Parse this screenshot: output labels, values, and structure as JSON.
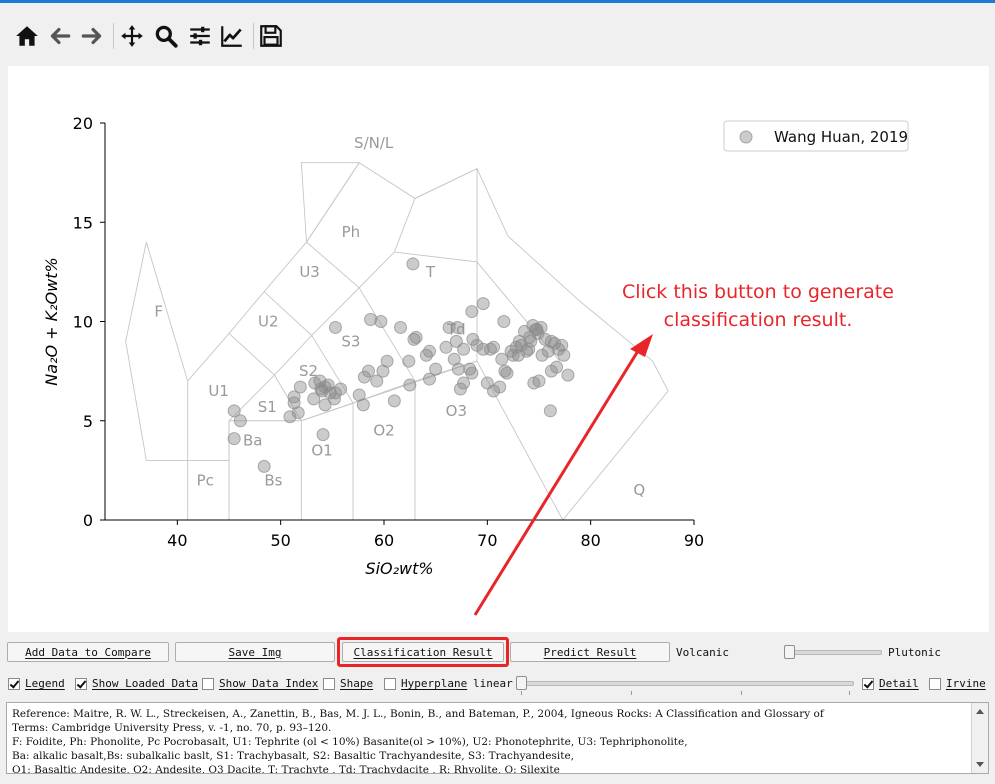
{
  "toolbar": {
    "icons": [
      "home-icon",
      "back-arrow-icon",
      "forward-arrow-icon",
      "pan-move-icon",
      "zoom-magnifier-icon",
      "configure-subplots-icon",
      "edit-axis-curve-icon",
      "save-floppy-icon"
    ]
  },
  "chart_data": {
    "type": "scatter",
    "xlabel": "SiO₂wt%",
    "ylabel": "Na₂O + K₂Owt%",
    "xlim": [
      33,
      90
    ],
    "ylim": [
      0,
      20
    ],
    "xticks": [
      "40",
      "50",
      "60",
      "70",
      "80",
      "90"
    ],
    "yticks": [
      "0",
      "5",
      "10",
      "15",
      "20"
    ],
    "grid": false,
    "legend_position": "top-right",
    "series": [
      {
        "name": "Wang Huan, 2019",
        "color": "#8c8c8c",
        "points": [
          [
            45.5,
            5.5
          ],
          [
            46.1,
            5.0
          ],
          [
            45.5,
            4.1
          ],
          [
            48.4,
            2.7
          ],
          [
            50.9,
            5.2
          ],
          [
            51.3,
            5.9
          ],
          [
            51.3,
            6.2
          ],
          [
            51.9,
            6.7
          ],
          [
            51.7,
            5.4
          ],
          [
            53.2,
            6.1
          ],
          [
            53.3,
            6.9
          ],
          [
            53.8,
            7.0
          ],
          [
            53.9,
            6.6
          ],
          [
            54.0,
            6.5
          ],
          [
            54.3,
            6.7
          ],
          [
            54.6,
            6.8
          ],
          [
            54.8,
            6.4
          ],
          [
            55.3,
            6.4
          ],
          [
            55.8,
            6.6
          ],
          [
            54.3,
            5.8
          ],
          [
            55.2,
            6.1
          ],
          [
            54.1,
            4.3
          ],
          [
            55.3,
            9.7
          ],
          [
            57.6,
            6.3
          ],
          [
            58.0,
            5.8
          ],
          [
            58.1,
            7.2
          ],
          [
            58.5,
            7.5
          ],
          [
            59.3,
            7.0
          ],
          [
            59.9,
            7.5
          ],
          [
            60.3,
            8.0
          ],
          [
            61.0,
            6.0
          ],
          [
            58.7,
            10.1
          ],
          [
            59.7,
            10.0
          ],
          [
            61.6,
            9.7
          ],
          [
            62.4,
            8.0
          ],
          [
            62.5,
            6.8
          ],
          [
            62.9,
            9.1
          ],
          [
            63.1,
            9.2
          ],
          [
            64.1,
            8.3
          ],
          [
            64.4,
            8.5
          ],
          [
            64.4,
            7.1
          ],
          [
            65.0,
            7.6
          ],
          [
            62.8,
            12.9
          ],
          [
            66.0,
            8.7
          ],
          [
            66.3,
            9.7
          ],
          [
            66.8,
            8.1
          ],
          [
            67.0,
            9.0
          ],
          [
            67.1,
            9.7
          ],
          [
            67.2,
            7.6
          ],
          [
            67.4,
            6.6
          ],
          [
            67.7,
            6.9
          ],
          [
            67.7,
            8.6
          ],
          [
            68.3,
            7.6
          ],
          [
            68.5,
            10.5
          ],
          [
            68.5,
            7.4
          ],
          [
            68.6,
            9.1
          ],
          [
            69.0,
            8.8
          ],
          [
            69.6,
            10.9
          ],
          [
            69.6,
            8.6
          ],
          [
            70.0,
            6.9
          ],
          [
            70.3,
            8.6
          ],
          [
            70.6,
            8.7
          ],
          [
            70.6,
            6.5
          ],
          [
            71.2,
            6.7
          ],
          [
            71.4,
            8.1
          ],
          [
            71.7,
            7.5
          ],
          [
            71.6,
            10.0
          ],
          [
            71.9,
            7.4
          ],
          [
            72.3,
            8.5
          ],
          [
            72.5,
            8.3
          ],
          [
            72.8,
            8.7
          ],
          [
            73.1,
            9.0
          ],
          [
            73.3,
            8.8
          ],
          [
            73.6,
            9.5
          ],
          [
            73.8,
            8.5
          ],
          [
            74.0,
            8.6
          ],
          [
            74.1,
            9.2
          ],
          [
            74.4,
            9.8
          ],
          [
            74.5,
            6.9
          ],
          [
            74.7,
            9.6
          ],
          [
            74.9,
            9.4
          ],
          [
            75.0,
            7.0
          ],
          [
            75.2,
            9.7
          ],
          [
            75.3,
            8.3
          ],
          [
            75.6,
            9.1
          ],
          [
            75.9,
            8.5
          ],
          [
            76.1,
            5.5
          ],
          [
            76.2,
            9.0
          ],
          [
            76.2,
            7.5
          ],
          [
            76.5,
            8.9
          ],
          [
            76.7,
            7.7
          ],
          [
            76.9,
            8.6
          ],
          [
            77.2,
            8.8
          ],
          [
            77.4,
            8.3
          ],
          [
            77.8,
            7.3
          ],
          [
            74.8,
            9.6
          ],
          [
            74.2,
            9.0
          ],
          [
            73.0,
            8.3
          ]
        ]
      }
    ],
    "field_labels": [
      {
        "text": "S/N/L",
        "x": 59.0,
        "y": 19.0
      },
      {
        "text": "Ph",
        "x": 56.8,
        "y": 14.5
      },
      {
        "text": "T",
        "x": 64.5,
        "y": 12.5
      },
      {
        "text": "U3",
        "x": 52.8,
        "y": 12.5
      },
      {
        "text": "F",
        "x": 38.2,
        "y": 10.5
      },
      {
        "text": "U2",
        "x": 48.8,
        "y": 10.0
      },
      {
        "text": "S3",
        "x": 56.8,
        "y": 9.0
      },
      {
        "text": "Td",
        "x": 67.0,
        "y": 9.6
      },
      {
        "text": "S2",
        "x": 52.7,
        "y": 7.5
      },
      {
        "text": "U1",
        "x": 44.0,
        "y": 6.5
      },
      {
        "text": "S1",
        "x": 48.7,
        "y": 5.7
      },
      {
        "text": "O3",
        "x": 67.0,
        "y": 5.5
      },
      {
        "text": "O2",
        "x": 60.0,
        "y": 4.5
      },
      {
        "text": "Ba",
        "x": 47.3,
        "y": 4.0
      },
      {
        "text": "O1",
        "x": 54.0,
        "y": 3.5
      },
      {
        "text": "Pc",
        "x": 42.7,
        "y": 2.0
      },
      {
        "text": "Bs",
        "x": 49.3,
        "y": 2.0
      },
      {
        "text": "Q",
        "x": 84.7,
        "y": 1.5
      }
    ],
    "field_boundaries": [
      [
        [
          41,
          0
        ],
        [
          41,
          3
        ],
        [
          45,
          3
        ],
        [
          45,
          5
        ],
        [
          49.4,
          7.3
        ],
        [
          53,
          9.3
        ],
        [
          57.6,
          11.7
        ],
        [
          61,
          13.5
        ],
        [
          63,
          16.2
        ]
      ],
      [
        [
          41,
          3
        ],
        [
          41,
          7
        ],
        [
          45,
          9.4
        ],
        [
          48.4,
          11.5
        ],
        [
          52.5,
          14
        ],
        [
          57.6,
          18
        ],
        [
          63,
          16.2
        ],
        [
          69,
          17.7
        ],
        [
          69,
          13
        ],
        [
          77,
          8
        ]
      ],
      [
        [
          45,
          0
        ],
        [
          45,
          5
        ]
      ],
      [
        [
          52,
          0
        ],
        [
          52,
          5
        ],
        [
          57,
          5.9
        ],
        [
          63,
          7
        ],
        [
          69,
          8
        ],
        [
          77.3,
          0
        ]
      ],
      [
        [
          57,
          0
        ],
        [
          57,
          5.9
        ]
      ],
      [
        [
          63,
          0
        ],
        [
          63,
          7
        ]
      ],
      [
        [
          45,
          5
        ],
        [
          52,
          5
        ],
        [
          69,
          8
        ]
      ],
      [
        [
          52,
          5
        ],
        [
          49.4,
          7.3
        ],
        [
          45,
          9.4
        ]
      ],
      [
        [
          57,
          5.9
        ],
        [
          53,
          9.3
        ],
        [
          48.4,
          11.5
        ]
      ],
      [
        [
          63,
          7
        ],
        [
          57.6,
          11.7
        ],
        [
          52.5,
          14
        ]
      ],
      [
        [
          69,
          8
        ],
        [
          69,
          13
        ],
        [
          61,
          13.5
        ]
      ],
      [
        [
          57.6,
          18
        ],
        [
          52.5,
          14
        ]
      ],
      [
        [
          39.2,
          0
        ],
        [
          41,
          0
        ]
      ],
      [
        [
          41,
          7
        ],
        [
          37,
          14
        ],
        [
          35,
          9
        ],
        [
          37,
          3
        ],
        [
          41,
          3
        ]
      ],
      [
        [
          52.5,
          14
        ],
        [
          52,
          18
        ],
        [
          57.6,
          18
        ]
      ],
      [
        [
          77.3,
          0
        ],
        [
          87.5,
          6.5
        ],
        [
          86,
          8
        ],
        [
          79,
          11
        ],
        [
          72,
          14.3
        ],
        [
          69,
          17.7
        ],
        [
          63,
          16.2
        ]
      ]
    ]
  },
  "annotation": {
    "text_line1": "Click this button to generate",
    "text_line2": "classification result.",
    "color": "#e8262a"
  },
  "controls": {
    "add_data_to_compare": "Add Data to Compare",
    "save_img": "Save Img",
    "classification_result": "Classification Result",
    "predict_result": "Predict Result",
    "volcanic_label": "Volcanic",
    "plutonic_label": "Plutonic",
    "legend": "Legend",
    "show_loaded_data": "Show Loaded Data",
    "show_data_index": "Show Data Index",
    "shape": "Shape",
    "hyperplane": "Hyperplane",
    "linear_label": "linear",
    "detail": "Detail",
    "irvine": "Irvine",
    "checked": {
      "legend": true,
      "show_loaded_data": true,
      "show_data_index": false,
      "shape": false,
      "hyperplane": false,
      "detail": true,
      "irvine": false
    }
  },
  "reference_text": [
    "Reference: Maitre, R. W. L., Streckeisen, A., Zanettin, B., Bas, M. J. L., Bonin, B., and Bateman, P., 2004, Igneous Rocks: A Classification and Glossary of",
    "Terms: Cambridge University Press, v. -1, no. 70, p. 93–120.",
    "F: Foidite, Ph: Phonolite, Pc Pocrobasalt, U1: Tephrite (ol < 10%) Basanite(ol > 10%), U2: Phonotephrite, U3: Tephriphonolite,",
    "Ba: alkalic basalt,Bs: subalkalic baslt, S1: Trachybasalt, S2: Basaltic Trachyandesite, S3: Trachyandesite,",
    "O1: Basaltic Andesite, O2: Andesite, O3 Dacite, T: Trachyte , Td: Trachydacite , R: Rhyolite, Q: Silexite"
  ]
}
